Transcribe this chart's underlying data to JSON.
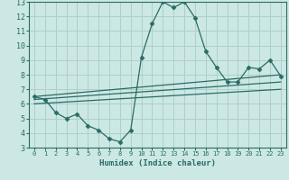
{
  "xlabel": "Humidex (Indice chaleur)",
  "bg_color": "#cce8e4",
  "grid_color": "#b0ceca",
  "line_color": "#2a6b65",
  "xlim": [
    0,
    23
  ],
  "ylim": [
    3,
    13
  ],
  "xticks": [
    0,
    1,
    2,
    3,
    4,
    5,
    6,
    7,
    8,
    9,
    10,
    11,
    12,
    13,
    14,
    15,
    16,
    17,
    18,
    19,
    20,
    21,
    22,
    23
  ],
  "yticks": [
    3,
    4,
    5,
    6,
    7,
    8,
    9,
    10,
    11,
    12,
    13
  ],
  "series1_x": [
    0,
    1,
    2,
    3,
    4,
    5,
    6,
    7,
    8,
    9,
    10,
    11,
    12,
    13,
    14,
    15,
    16,
    17,
    18,
    19,
    20,
    21,
    22,
    23
  ],
  "series1_y": [
    6.5,
    6.3,
    5.4,
    5.0,
    5.3,
    4.5,
    4.2,
    3.6,
    3.4,
    4.2,
    9.2,
    11.5,
    13.0,
    12.6,
    13.0,
    11.9,
    9.6,
    8.5,
    7.5,
    7.5,
    8.5,
    8.4,
    9.0,
    7.9
  ],
  "trend1_x": [
    0,
    23
  ],
  "trend1_y": [
    6.5,
    8.0
  ],
  "trend2_x": [
    0,
    23
  ],
  "trend2_y": [
    6.3,
    7.5
  ],
  "trend3_x": [
    0,
    23
  ],
  "trend3_y": [
    6.0,
    7.0
  ]
}
